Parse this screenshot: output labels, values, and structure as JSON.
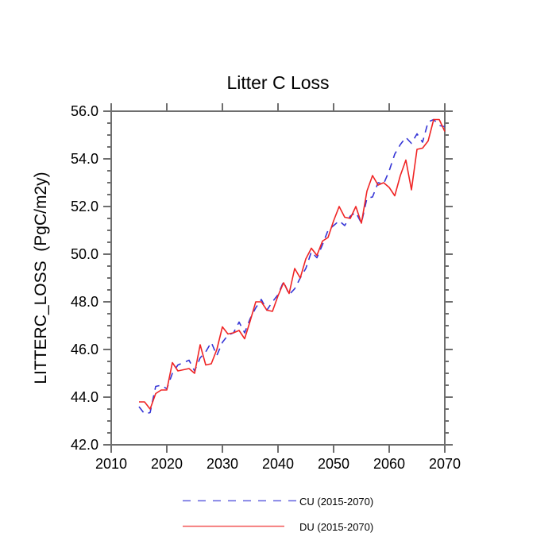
{
  "title": "Litter C Loss",
  "axes": {
    "ylabel": "LITTERC_LOSS  (PgC/m2y)",
    "xlim": [
      2010,
      2070
    ],
    "ylim": [
      42.0,
      56.0
    ],
    "x_tick_labels": [
      "2010",
      "2020",
      "2030",
      "2040",
      "2050",
      "2060",
      "2070"
    ],
    "x_tick_values": [
      2010,
      2020,
      2030,
      2040,
      2050,
      2060,
      2070
    ],
    "y_tick_labels": [
      "42.0",
      "44.0",
      "46.0",
      "48.0",
      "50.0",
      "52.0",
      "54.0",
      "56.0"
    ],
    "y_tick_values": [
      42,
      44,
      46,
      48,
      50,
      52,
      54,
      56
    ],
    "y_minor_step": 0.5,
    "axis_color": "#6e6e6e"
  },
  "legend": {
    "cu_label": "CU (2015-2070)",
    "du_label": "DU (2015-2070)"
  },
  "chart_data": {
    "type": "line",
    "title": "Litter C Loss",
    "xlabel": "",
    "ylabel": "LITTERC_LOSS  (PgC/m2y)",
    "xlim": [
      2010,
      2070
    ],
    "ylim": [
      42.0,
      56.0
    ],
    "grid": false,
    "legend_position": "bottom",
    "x": [
      2015,
      2016,
      2017,
      2018,
      2019,
      2020,
      2021,
      2022,
      2023,
      2024,
      2025,
      2026,
      2027,
      2028,
      2029,
      2030,
      2031,
      2032,
      2033,
      2034,
      2035,
      2036,
      2037,
      2038,
      2039,
      2040,
      2041,
      2042,
      2043,
      2044,
      2045,
      2046,
      2047,
      2048,
      2049,
      2050,
      2051,
      2052,
      2053,
      2054,
      2055,
      2056,
      2057,
      2058,
      2059,
      2060,
      2061,
      2062,
      2063,
      2064,
      2065,
      2066,
      2067,
      2068,
      2069,
      2070
    ],
    "series": [
      {
        "name": "CU (2015-2070)",
        "color": "#3535d6",
        "style": "dashed",
        "values": [
          43.6,
          43.3,
          43.35,
          44.45,
          44.5,
          44.35,
          45.0,
          45.35,
          45.45,
          45.55,
          45.1,
          45.65,
          45.9,
          46.3,
          45.75,
          46.3,
          46.6,
          46.7,
          47.15,
          46.7,
          47.3,
          47.75,
          48.1,
          47.65,
          48.0,
          48.3,
          48.85,
          48.3,
          48.55,
          49.0,
          49.4,
          50.1,
          49.85,
          50.4,
          51.0,
          51.2,
          51.4,
          51.2,
          51.6,
          51.75,
          51.3,
          52.35,
          52.4,
          53.0,
          52.95,
          53.5,
          54.2,
          54.6,
          54.9,
          54.65,
          55.05,
          54.7,
          55.55,
          55.65,
          55.4,
          55.35
        ]
      },
      {
        "name": "DU (2015-2070)",
        "color": "#f02424",
        "style": "solid",
        "values": [
          43.8,
          43.8,
          43.5,
          44.15,
          44.3,
          44.3,
          45.45,
          45.1,
          45.15,
          45.2,
          45.0,
          46.2,
          45.35,
          45.4,
          46.0,
          46.95,
          46.65,
          46.7,
          46.8,
          46.45,
          47.2,
          48.0,
          48.0,
          47.65,
          47.6,
          48.25,
          48.8,
          48.35,
          49.4,
          49.0,
          49.8,
          50.25,
          49.95,
          50.55,
          50.7,
          51.4,
          52.0,
          51.55,
          51.5,
          52.0,
          51.3,
          52.65,
          53.3,
          52.9,
          53.0,
          52.8,
          52.45,
          53.3,
          53.95,
          52.7,
          54.4,
          54.45,
          54.75,
          55.65,
          55.65,
          55.15
        ]
      }
    ]
  }
}
